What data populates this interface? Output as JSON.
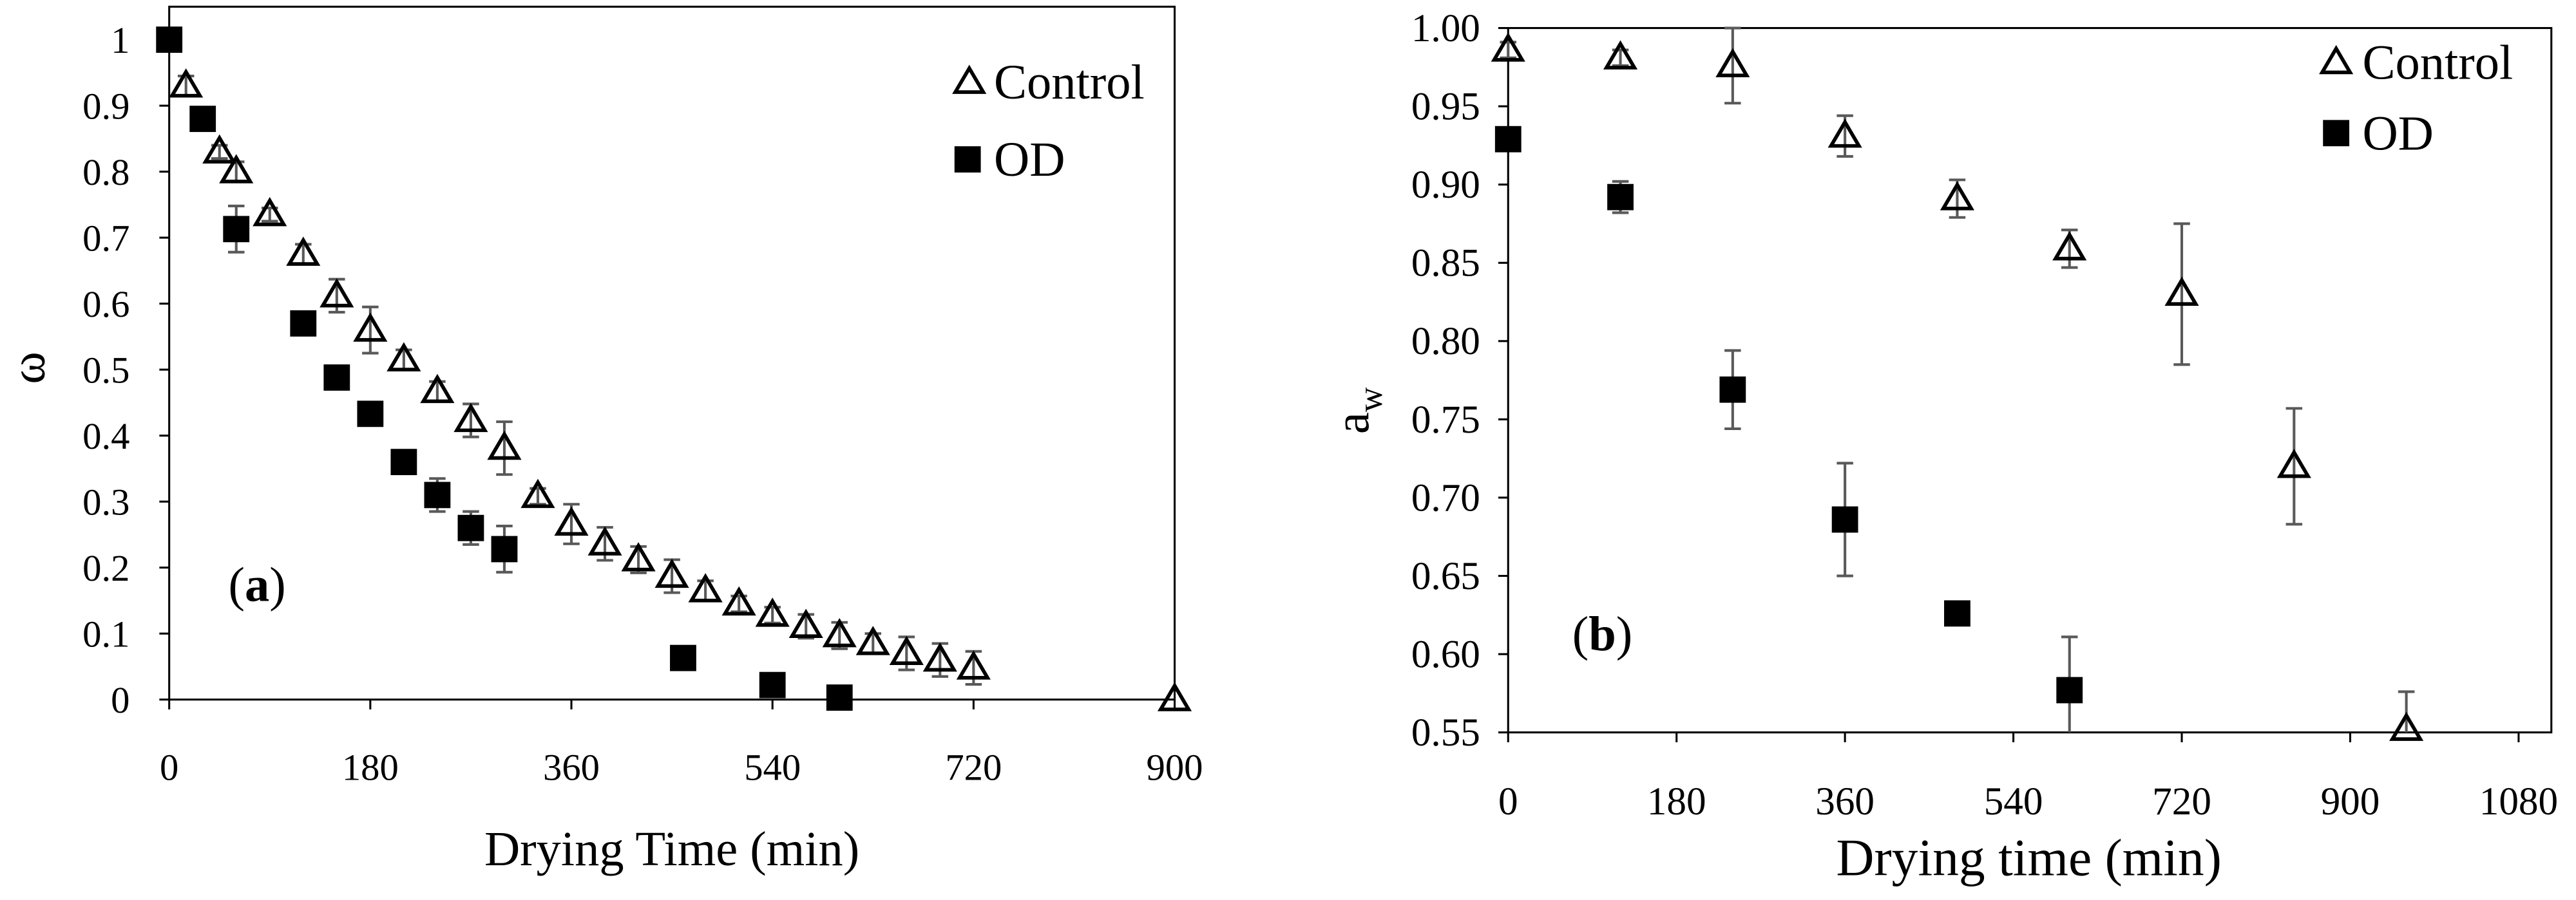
{
  "chart_data": [
    {
      "type": "scatter",
      "panel_label": [
        "(",
        "a",
        ")"
      ],
      "xlabel": "Drying Time (min)",
      "ylabel": "ω",
      "xlim": [
        0,
        900
      ],
      "ylim": [
        0,
        1.05
      ],
      "x_ticks": [
        0,
        180,
        360,
        540,
        720,
        900
      ],
      "x_tick_labels": [
        "0",
        "180",
        "360",
        "540",
        "720",
        "900"
      ],
      "y_ticks": [
        0,
        0.1,
        0.2,
        0.3,
        0.4,
        0.5,
        0.6,
        0.7,
        0.8,
        0.9,
        1
      ],
      "y_tick_labels": [
        "0",
        "0.1",
        "0.2",
        "0.3",
        "0.4",
        "0.5",
        "0.6",
        "0.7",
        "0.8",
        "0.9",
        "1"
      ],
      "grid": false,
      "legend_position": "top-right",
      "series": [
        {
          "name": "Control",
          "marker": "triangle-open",
          "x": [
            15,
            45,
            60,
            90,
            120,
            150,
            180,
            210,
            240,
            270,
            300,
            330,
            360,
            390,
            420,
            450,
            480,
            510,
            540,
            570,
            600,
            630,
            660,
            690,
            720,
            900
          ],
          "y": [
            0.93,
            0.83,
            0.8,
            0.735,
            0.675,
            0.612,
            0.56,
            0.515,
            0.467,
            0.423,
            0.381,
            0.308,
            0.266,
            0.236,
            0.212,
            0.187,
            0.165,
            0.145,
            0.128,
            0.111,
            0.097,
            0.085,
            0.07,
            0.06,
            0.048,
            0
          ],
          "error": [
            0.015,
            0.01,
            0.015,
            0.01,
            0.015,
            0.025,
            0.035,
            0.015,
            0.015,
            0.025,
            0.04,
            0.012,
            0.03,
            0.025,
            0.02,
            0.025,
            0.015,
            0.012,
            0.012,
            0.018,
            0.02,
            0.015,
            0.025,
            0.025,
            0.025,
            0
          ]
        },
        {
          "name": "OD",
          "marker": "square-filled",
          "x": [
            0,
            30,
            60,
            120,
            150,
            180,
            210,
            240,
            270,
            300,
            460,
            540,
            600
          ],
          "y": [
            1.0,
            0.88,
            0.713,
            0.57,
            0.488,
            0.433,
            0.36,
            0.31,
            0.26,
            0.228,
            0.063,
            0.022,
            0.003
          ],
          "error": [
            0,
            0.01,
            0.035,
            0.01,
            0.01,
            0.01,
            0.01,
            0.025,
            0.025,
            0.035,
            0,
            0,
            0
          ]
        }
      ]
    },
    {
      "type": "scatter",
      "panel_label": [
        "(",
        "b",
        ")"
      ],
      "xlabel": "Drying time (min)",
      "ylabel": {
        "text": "a",
        "subscript": "w"
      },
      "xlim": [
        0,
        1115
      ],
      "ylim": [
        0.55,
        1.0
      ],
      "x_ticks": [
        0,
        180,
        360,
        540,
        720,
        900,
        1080
      ],
      "x_tick_labels": [
        "0",
        "180",
        "360",
        "540",
        "720",
        "900",
        "1080"
      ],
      "y_ticks": [
        0.55,
        0.6,
        0.65,
        0.7,
        0.75,
        0.8,
        0.85,
        0.9,
        0.95,
        1.0
      ],
      "y_tick_labels": [
        "0.55",
        "0.60",
        "0.65",
        "0.70",
        "0.75",
        "0.80",
        "0.85",
        "0.90",
        "0.95",
        "1.00"
      ],
      "grid": false,
      "legend_position": "top-right",
      "series": [
        {
          "name": "Control",
          "marker": "triangle-open",
          "x": [
            0,
            120,
            240,
            360,
            480,
            600,
            720,
            840,
            960
          ],
          "y": [
            0.986,
            0.981,
            0.976,
            0.931,
            0.891,
            0.859,
            0.83,
            0.72,
            0.552
          ],
          "error": [
            0.005,
            0.005,
            0.024,
            0.013,
            0.012,
            0.012,
            0.045,
            0.037,
            0.024
          ]
        },
        {
          "name": "OD",
          "marker": "square-filled",
          "x": [
            0,
            120,
            240,
            360,
            480,
            600
          ],
          "y": [
            0.929,
            0.892,
            0.769,
            0.686,
            0.626,
            0.577
          ],
          "error": [
            0,
            0.01,
            0.025,
            0.036,
            0,
            0.034
          ]
        }
      ]
    }
  ],
  "colors": {
    "marker_stroke": "#000000",
    "marker_fill": "#000000",
    "error_bar": "#595959",
    "axis": "#000000"
  }
}
